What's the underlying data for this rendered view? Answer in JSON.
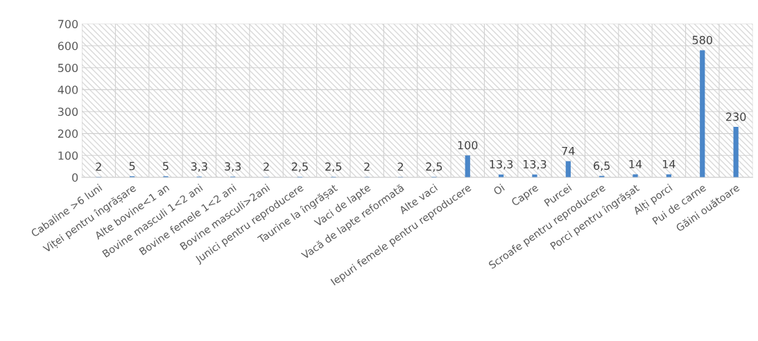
{
  "chart_data": {
    "type": "bar",
    "categories": [
      "Cabaline >6 luni",
      "Viței pentru îngrășare",
      "Alte bovine<1 an",
      "Bovine masculi 1<2 ani",
      "Bovine femele 1<2 ani",
      "Bovine masculi>2ani",
      "Junici pentru reproducere",
      "Taurine la îngrășat",
      "Vaci de lapte",
      "Vacă de lapte reformată",
      "Alte vaci",
      "Iepuri femele pentru reproducere",
      "Oi",
      "Capre",
      "Purcei",
      "Scroafe pentru reproducere",
      "Porci pentru îngrășat",
      "Alți porci",
      "Pui de carne",
      "Găini ouătoare"
    ],
    "values": [
      2,
      5,
      5,
      3.3,
      3.3,
      2,
      2.5,
      2.5,
      2,
      2,
      2.5,
      100,
      13.3,
      13.3,
      74,
      6.5,
      14,
      14,
      580,
      230
    ],
    "value_labels": [
      "2",
      "5",
      "5",
      "3,3",
      "3,3",
      "2",
      "2,5",
      "2,5",
      "2",
      "2",
      "2,5",
      "100",
      "13,3",
      "13,3",
      "74",
      "6,5",
      "14",
      "14",
      "580",
      "230"
    ],
    "color": "#4a86c8",
    "ylim": [
      0,
      700
    ],
    "yticks": [
      0,
      100,
      200,
      300,
      400,
      500,
      600,
      700
    ],
    "grid": true
  }
}
